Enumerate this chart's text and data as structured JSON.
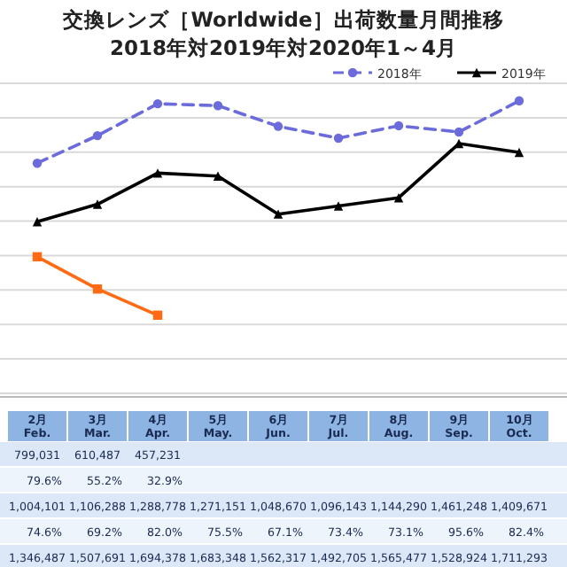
{
  "chart_data": {
    "type": "line",
    "title": "交換レンズ［Worldwide］出荷数量月間推移",
    "subtitle": "2018年対2019年対2020年1～4月",
    "categories": [
      "2月\nFeb.",
      "3月\nMar.",
      "4月\nApr.",
      "5月\nMay.",
      "6月\nJun.",
      "7月\nJul.",
      "8月\nAug.",
      "9月\nSep.",
      "10月\nOct."
    ],
    "series": [
      {
        "name": "2018年",
        "color": "#6b6bdc",
        "marker": "circle",
        "line_style": "dashed",
        "values": [
          1346487,
          1507691,
          1694378,
          1683348,
          1562317,
          1492705,
          1565477,
          1528924,
          1711293
        ],
        "value_labels": [
          "1,346,487",
          "1,507,691",
          "1,694,378",
          "1,683,348",
          "1,562,317",
          "1,492,705",
          "1,565,477",
          "1,528,924",
          "1,711,293"
        ]
      },
      {
        "name": "2019年",
        "color": "#000000",
        "marker": "triangle",
        "line_style": "solid",
        "values": [
          1004101,
          1106288,
          1288778,
          1271151,
          1048670,
          1096143,
          1144290,
          1461248,
          1409671
        ],
        "value_labels": [
          "1,004,101",
          "1,106,288",
          "1,288,778",
          "1,271,151",
          "1,048,670",
          "1,096,143",
          "1,144,290",
          "1,461,248",
          "1,409,671"
        ]
      },
      {
        "color": "#ff6a13",
        "marker": "square",
        "line_style": "solid",
        "values": [
          799031,
          610487,
          457231,
          null,
          null,
          null,
          null,
          null,
          null
        ],
        "value_labels": [
          "799,031",
          "610,487",
          "457,231",
          null,
          null,
          null,
          null,
          null,
          null
        ]
      }
    ],
    "grid": "y",
    "legend": "top right",
    "annotations": [
      "79.6%",
      "55.2%",
      "32.9%",
      "74.6%",
      "69.2%",
      "82.0%",
      "75.5%",
      "67.1%",
      "73.4%",
      "73.1%",
      "95.6%",
      "82.4%"
    ]
  }
}
